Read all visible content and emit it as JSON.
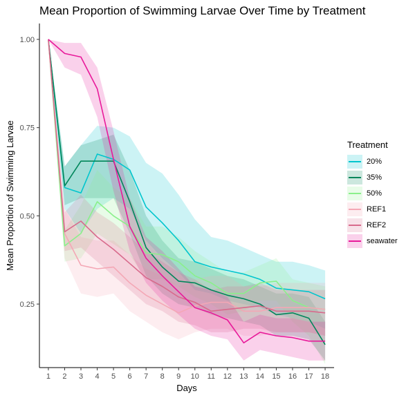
{
  "chart_data": {
    "type": "line",
    "title": "Mean Proportion of Swimming Larvae Over Time by Treatment",
    "xlabel": "Days",
    "ylabel": "Mean Proportion of Swimming Larvae",
    "x": [
      1,
      2,
      3,
      4,
      5,
      6,
      7,
      8,
      9,
      10,
      11,
      12,
      13,
      14,
      15,
      16,
      17,
      18
    ],
    "xlim": [
      0.45,
      18.55
    ],
    "ylim": [
      0.07,
      1.045
    ],
    "yticks": [
      0.25,
      0.5,
      0.75,
      1.0
    ],
    "ytick_labels": [
      "0.25",
      "0.50",
      "0.75",
      "1.00"
    ],
    "legend_title": "Treatment",
    "legend_position": "right",
    "grid": false,
    "series": [
      {
        "name": "20%",
        "color": "#00C5CD",
        "values": [
          1.0,
          0.58,
          0.565,
          0.675,
          0.66,
          0.63,
          0.525,
          0.48,
          0.43,
          0.37,
          0.355,
          0.345,
          0.335,
          0.32,
          0.295,
          0.29,
          0.285,
          0.265
        ],
        "lower": [
          1.0,
          0.52,
          0.45,
          0.52,
          0.55,
          0.52,
          0.43,
          0.38,
          0.34,
          0.29,
          0.28,
          0.26,
          0.25,
          0.24,
          0.22,
          0.21,
          0.2,
          0.18
        ],
        "upper": [
          1.0,
          0.64,
          0.7,
          0.755,
          0.75,
          0.725,
          0.65,
          0.62,
          0.56,
          0.49,
          0.44,
          0.43,
          0.41,
          0.39,
          0.37,
          0.37,
          0.36,
          0.345
        ]
      },
      {
        "name": "35%",
        "color": "#00865A",
        "values": [
          1.0,
          0.585,
          0.655,
          0.655,
          0.655,
          0.54,
          0.41,
          0.355,
          0.315,
          0.31,
          0.29,
          0.275,
          0.265,
          0.25,
          0.22,
          0.225,
          0.21,
          0.135
        ],
        "lower": [
          1.0,
          0.53,
          0.55,
          0.55,
          0.55,
          0.45,
          0.33,
          0.28,
          0.25,
          0.24,
          0.22,
          0.21,
          0.2,
          0.19,
          0.16,
          0.16,
          0.15,
          0.09
        ],
        "upper": [
          1.0,
          0.64,
          0.7,
          0.715,
          0.73,
          0.63,
          0.5,
          0.43,
          0.38,
          0.37,
          0.35,
          0.33,
          0.32,
          0.3,
          0.28,
          0.28,
          0.27,
          0.2
        ]
      },
      {
        "name": "50%",
        "color": "#8AF08A",
        "values": [
          1.0,
          0.415,
          0.45,
          0.54,
          0.5,
          0.47,
          0.395,
          0.39,
          0.37,
          0.33,
          0.31,
          0.28,
          0.28,
          0.31,
          0.315,
          0.26,
          0.24,
          0.235
        ],
        "lower": [
          1.0,
          0.37,
          0.38,
          0.45,
          0.42,
          0.39,
          0.32,
          0.32,
          0.3,
          0.27,
          0.25,
          0.22,
          0.23,
          0.26,
          0.26,
          0.2,
          0.16,
          0.08
        ],
        "upper": [
          1.0,
          0.46,
          0.53,
          0.63,
          0.58,
          0.55,
          0.47,
          0.47,
          0.44,
          0.4,
          0.37,
          0.34,
          0.34,
          0.36,
          0.38,
          0.32,
          0.31,
          0.3
        ]
      },
      {
        "name": "REF1",
        "color": "#F4A7B5",
        "values": [
          1.0,
          0.45,
          0.36,
          0.35,
          0.355,
          0.31,
          0.275,
          0.25,
          0.225,
          0.245,
          0.255,
          0.255,
          0.23,
          0.23,
          0.24,
          0.24,
          0.24,
          0.235
        ],
        "lower": [
          1.0,
          0.38,
          0.28,
          0.27,
          0.28,
          0.23,
          0.2,
          0.17,
          0.15,
          0.17,
          0.18,
          0.18,
          0.16,
          0.16,
          0.17,
          0.17,
          0.17,
          0.16
        ],
        "upper": [
          1.0,
          0.52,
          0.44,
          0.43,
          0.43,
          0.39,
          0.35,
          0.33,
          0.3,
          0.32,
          0.33,
          0.33,
          0.3,
          0.3,
          0.31,
          0.31,
          0.31,
          0.31
        ]
      },
      {
        "name": "REF2",
        "color": "#D86A8C",
        "values": [
          1.0,
          0.455,
          0.485,
          0.44,
          0.405,
          0.365,
          0.325,
          0.3,
          0.27,
          0.255,
          0.23,
          0.235,
          0.24,
          0.245,
          0.23,
          0.23,
          0.23,
          0.225
        ],
        "lower": [
          1.0,
          0.4,
          0.41,
          0.37,
          0.33,
          0.29,
          0.25,
          0.23,
          0.2,
          0.19,
          0.17,
          0.17,
          0.18,
          0.18,
          0.17,
          0.17,
          0.17,
          0.16
        ],
        "upper": [
          1.0,
          0.51,
          0.56,
          0.51,
          0.48,
          0.44,
          0.4,
          0.37,
          0.34,
          0.32,
          0.29,
          0.3,
          0.3,
          0.31,
          0.29,
          0.29,
          0.29,
          0.29
        ]
      },
      {
        "name": "seawater",
        "color": "#E8199A",
        "values": [
          1.0,
          0.96,
          0.95,
          0.86,
          0.66,
          0.47,
          0.38,
          0.33,
          0.285,
          0.24,
          0.225,
          0.205,
          0.14,
          0.17,
          0.16,
          0.155,
          0.145,
          0.145
        ],
        "lower": [
          1.0,
          0.92,
          0.9,
          0.78,
          0.57,
          0.4,
          0.31,
          0.26,
          0.22,
          0.18,
          0.16,
          0.15,
          0.09,
          0.12,
          0.11,
          0.1,
          0.09,
          0.09
        ],
        "upper": [
          1.0,
          0.99,
          0.99,
          0.92,
          0.74,
          0.55,
          0.44,
          0.4,
          0.35,
          0.3,
          0.29,
          0.27,
          0.2,
          0.22,
          0.21,
          0.21,
          0.2,
          0.2
        ]
      }
    ]
  }
}
